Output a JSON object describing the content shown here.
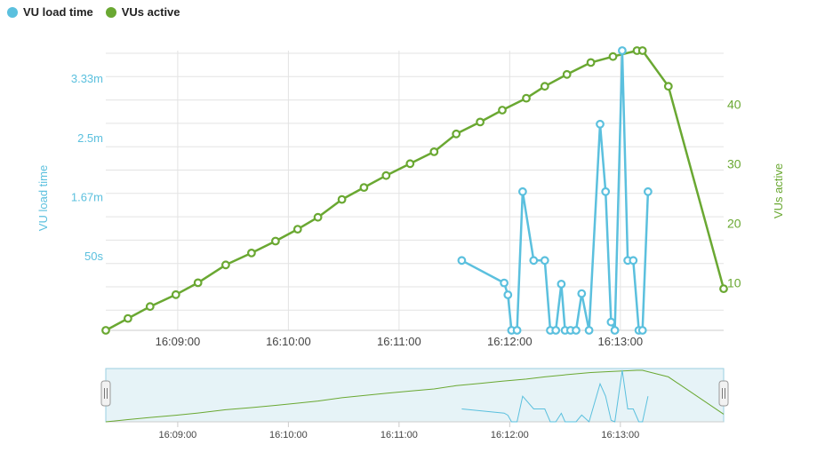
{
  "legend": {
    "load_time_label": "VU load time",
    "active_label": "VUs active"
  },
  "colors": {
    "load_time": "#5bc0de",
    "active": "#6aa832",
    "grid": "#e3e3e3",
    "navigator_fill": "#e6f3f7",
    "navigator_border": "#9bcfe0"
  },
  "chart_data": {
    "type": "line",
    "x_tick_labels": [
      "16:09:00",
      "16:10:00",
      "16:11:00",
      "16:12:00",
      "16:13:00"
    ],
    "x_ticks_seconds": [
      540,
      600,
      660,
      720,
      780
    ],
    "x_range_seconds": [
      501,
      836
    ],
    "left_axis": {
      "label": "VU load time",
      "tick_labels": [
        "50s",
        "1.67m",
        "2.5m",
        "3.33m"
      ],
      "tick_values_seconds": [
        50,
        100,
        150,
        200
      ],
      "range_seconds": [
        -12,
        224
      ]
    },
    "right_axis": {
      "label": "VUs active",
      "tick_labels": [
        "10",
        "20",
        "30",
        "40"
      ],
      "tick_values": [
        10,
        20,
        30,
        40
      ],
      "range": [
        2,
        49
      ]
    },
    "series": [
      {
        "name": "VU load time",
        "axis": "left",
        "x_seconds": [
          694,
          717,
          719,
          721,
          724,
          727,
          733,
          739,
          742,
          745,
          748,
          750,
          753,
          756,
          759,
          763,
          769,
          772,
          775,
          777,
          781,
          784,
          787,
          790,
          792,
          795
        ],
        "y_seconds": [
          47,
          28,
          18,
          -12,
          -12,
          105,
          47,
          47,
          -12,
          -12,
          27,
          -12,
          -12,
          -12,
          19,
          -12,
          162,
          105,
          -5,
          -12,
          224,
          47,
          47,
          -12,
          -12,
          105
        ]
      },
      {
        "name": "VUs active",
        "axis": "right",
        "x_seconds": [
          501,
          513,
          525,
          539,
          551,
          566,
          580,
          593,
          605,
          616,
          629,
          641,
          653,
          666,
          679,
          691,
          704,
          716,
          729,
          739,
          751,
          764,
          776,
          789,
          792,
          806,
          836
        ],
        "y": [
          2,
          4,
          6,
          8,
          10,
          13,
          15,
          17,
          19,
          21,
          24,
          26,
          28,
          30,
          32,
          35,
          37,
          39,
          41,
          43,
          45,
          47,
          48,
          49,
          49,
          43,
          9
        ]
      }
    ]
  }
}
